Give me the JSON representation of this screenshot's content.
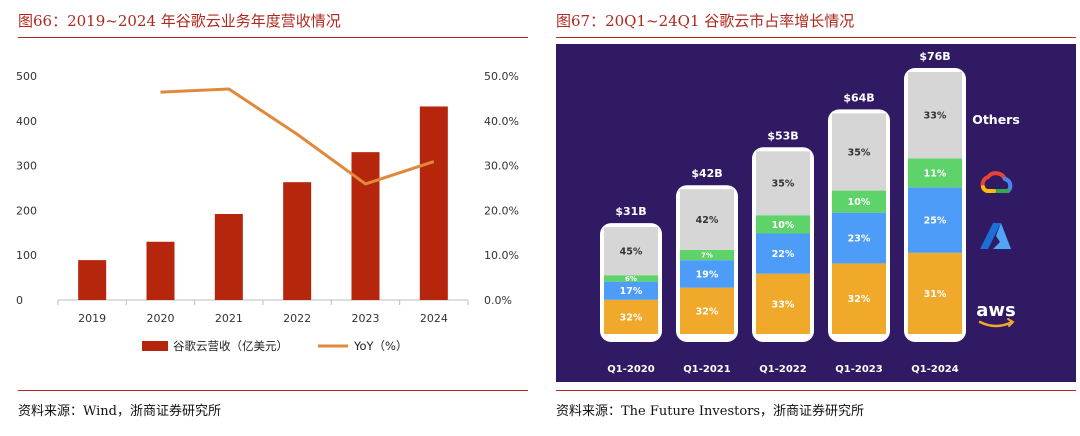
{
  "left": {
    "title": "图66：2019~2024 年谷歌云业务年度营收情况",
    "source": "资料来源：Wind，浙商证券研究所",
    "colors": {
      "bar": "#b5260d",
      "line": "#e0893a",
      "title": "#b0281e"
    },
    "chart_data": {
      "type": "bar+line",
      "categories": [
        "2019",
        "2020",
        "2021",
        "2022",
        "2023",
        "2024"
      ],
      "series": [
        {
          "name": "谷歌云营收（亿美元）",
          "type": "bar",
          "axis": "left",
          "values": [
            89,
            130,
            192,
            263,
            330,
            432
          ]
        },
        {
          "name": "YoY（%）",
          "type": "line",
          "axis": "right",
          "values": [
            null,
            46.4,
            47.1,
            37.0,
            25.9,
            30.9
          ]
        }
      ],
      "left_axis": {
        "ylim": [
          0,
          500
        ],
        "ticks": [
          "0",
          "100",
          "200",
          "300",
          "400",
          "500"
        ]
      },
      "right_axis": {
        "ylim": [
          0,
          50
        ],
        "ticks": [
          "0.0%",
          "10.0%",
          "20.0%",
          "30.0%",
          "40.0%",
          "50.0%"
        ]
      },
      "legend_position": "bottom",
      "grid": false
    }
  },
  "right": {
    "title": "图67：20Q1~24Q1 谷歌云市占率增长情况",
    "source": "资料来源：The Future Investors，浙商证券研究所",
    "colors": {
      "background": "#2f1a63",
      "aws": "#f0a92a",
      "azure": "#4d9cf7",
      "google": "#5ed36a",
      "others": "#d6d6d6",
      "pill": "#ffffff"
    },
    "chart_data": {
      "type": "stacked-bar",
      "categories": [
        "Q1-2020",
        "Q1-2021",
        "Q1-2022",
        "Q1-2023",
        "Q1-2024"
      ],
      "totals": [
        "$31B",
        "$42B",
        "$53B",
        "$64B",
        "$76B"
      ],
      "total_values": [
        31,
        42,
        53,
        64,
        76
      ],
      "series": [
        {
          "key": "aws",
          "values": [
            32,
            32,
            33,
            32,
            31
          ],
          "labels": [
            "32%",
            "32%",
            "33%",
            "32%",
            "31%"
          ]
        },
        {
          "key": "azure",
          "values": [
            17,
            19,
            22,
            23,
            25
          ],
          "labels": [
            "17%",
            "19%",
            "22%",
            "23%",
            "25%"
          ]
        },
        {
          "key": "google",
          "values": [
            6,
            7,
            10,
            10,
            11
          ],
          "labels": [
            "6%",
            "7%",
            "10%",
            "10%",
            "11%"
          ]
        },
        {
          "key": "others",
          "values": [
            45,
            42,
            35,
            35,
            33
          ],
          "labels": [
            "45%",
            "42%",
            "35%",
            "35%",
            "33%"
          ]
        }
      ],
      "legend": [
        {
          "key": "others",
          "text": "Others",
          "icon": "others-label"
        },
        {
          "key": "google",
          "icon": "google-cloud-icon"
        },
        {
          "key": "azure",
          "icon": "azure-icon"
        },
        {
          "key": "aws",
          "text": "aws",
          "icon": "aws-logo"
        }
      ]
    }
  }
}
